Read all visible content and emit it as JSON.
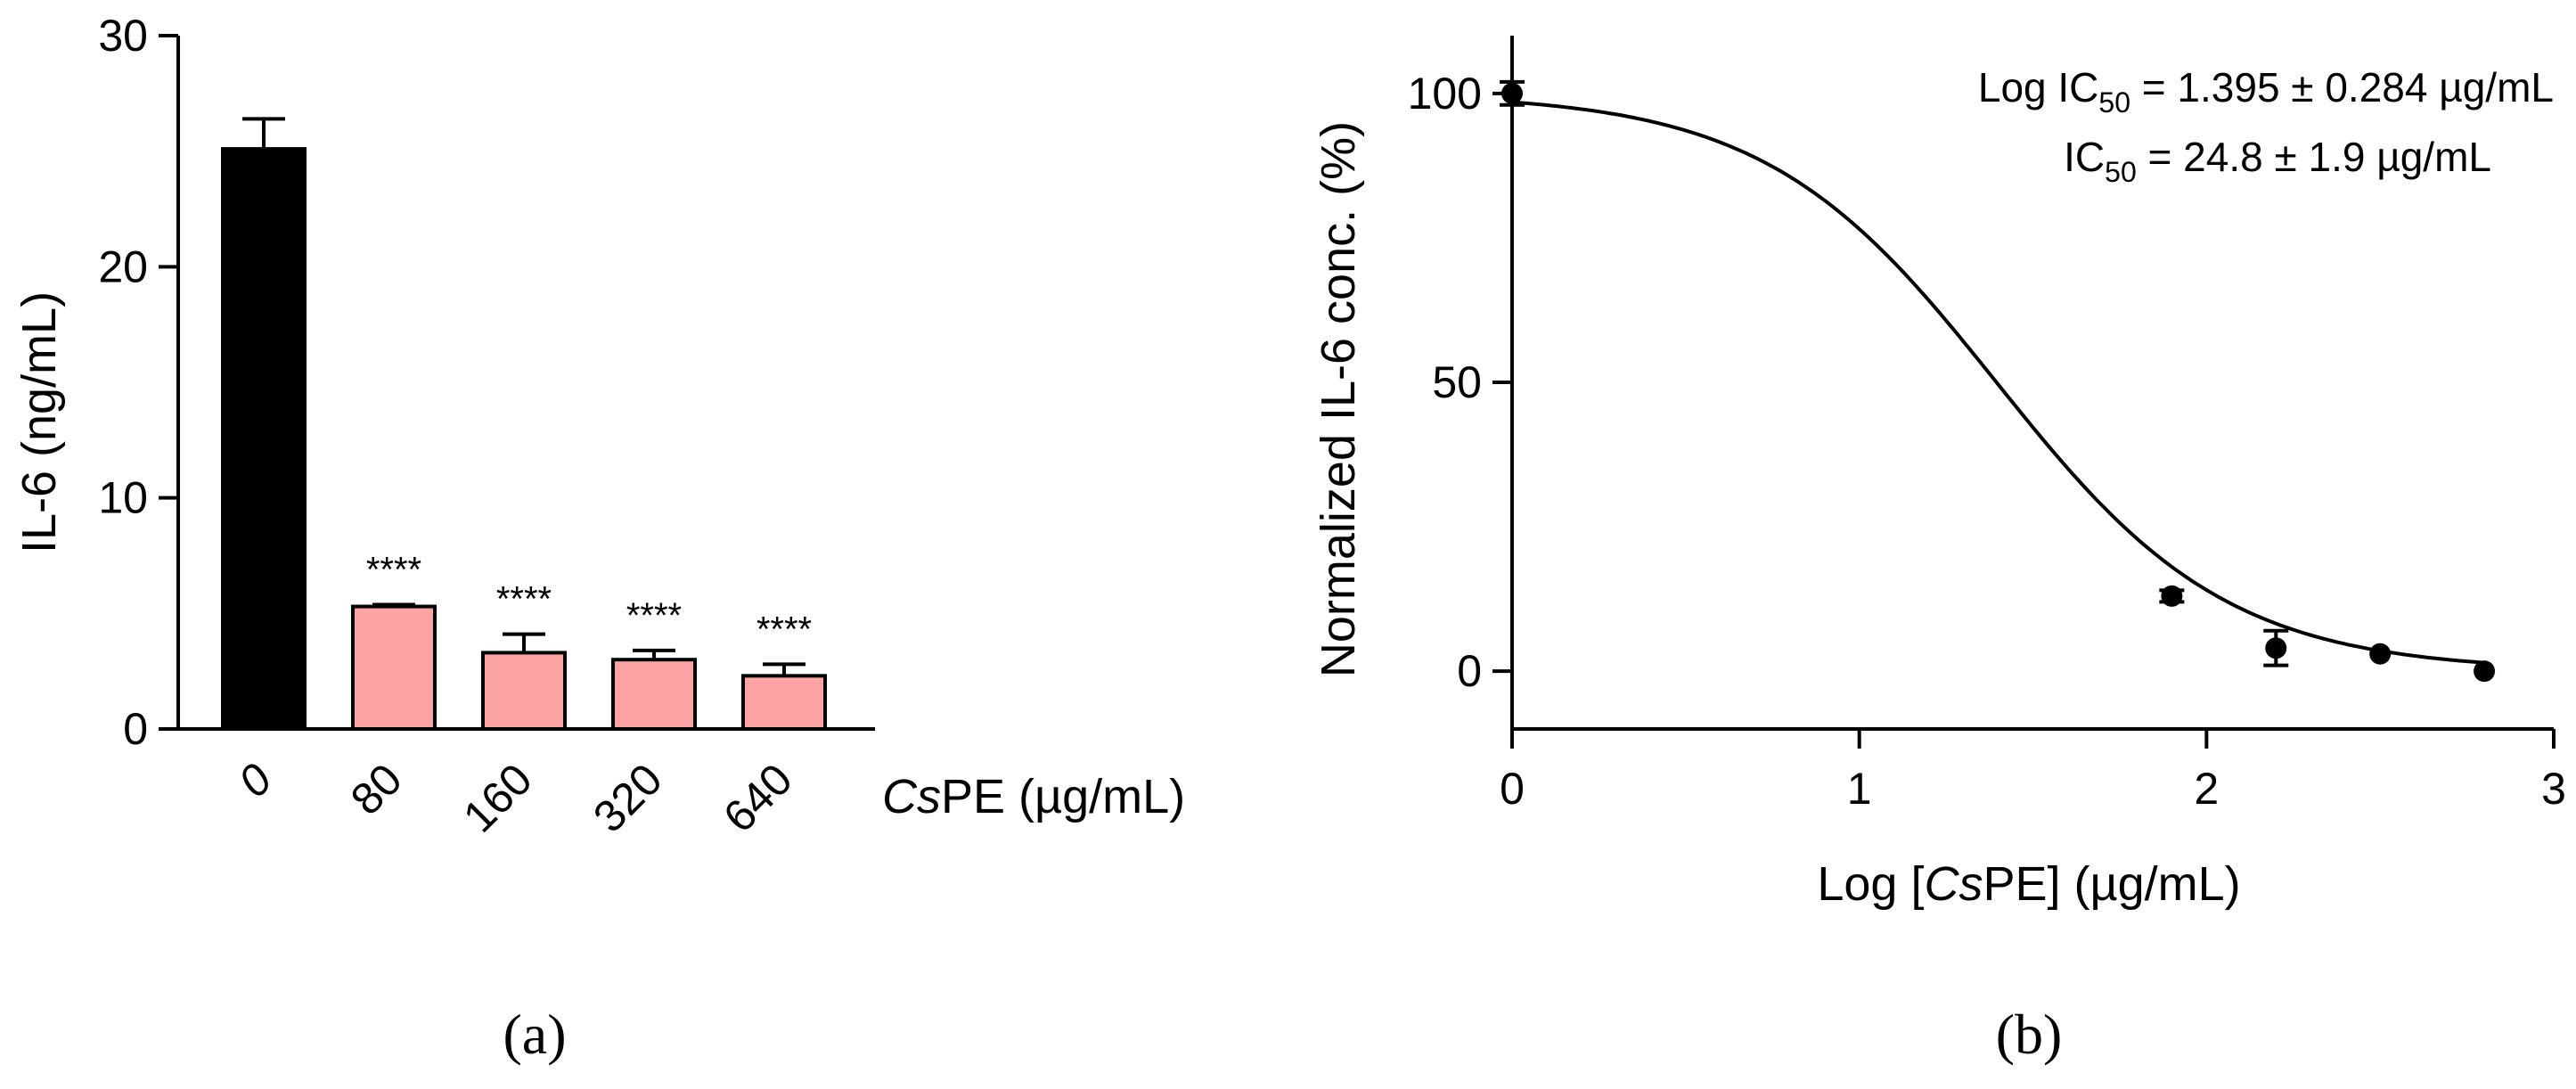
{
  "chart_data": [
    {
      "type": "bar",
      "panel": "(a)",
      "ylabel": "IL-6 (ng/mL)",
      "xlabel_italic": "Cs",
      "xlabel_rest": "PE (µg/mL)",
      "ylim": [
        0,
        30
      ],
      "yticks": [
        0,
        10,
        20,
        30
      ],
      "grid": false,
      "legend": "none",
      "categories": [
        "0",
        "80",
        "160",
        "320",
        "640"
      ],
      "values": [
        25.1,
        5.3,
        3.3,
        3.0,
        2.3
      ],
      "errors": [
        1.3,
        0.08,
        0.8,
        0.4,
        0.5
      ],
      "significance": [
        "",
        "****",
        "****",
        "****",
        "****"
      ],
      "colors": [
        "#000000",
        "#FCA3A3",
        "#FCA3A3",
        "#FCA3A3",
        "#FCA3A3"
      ]
    },
    {
      "type": "scatter",
      "panel": "(b)",
      "xlabel_prefix": "Log [",
      "xlabel_italic": "Cs",
      "xlabel_rest": "PE] (µg/mL)",
      "ylabel": "Normalized IL-6 conc. (%)",
      "xlim": [
        0,
        3
      ],
      "ylim": [
        -10,
        110
      ],
      "xticks": [
        0,
        1,
        2,
        3
      ],
      "yticks": [
        0,
        50,
        100
      ],
      "grid": false,
      "legend": "none",
      "points": {
        "x": [
          0,
          1.9,
          2.2,
          2.5,
          2.8
        ],
        "y": [
          100,
          13,
          4,
          3,
          0
        ],
        "err": [
          2,
          1,
          3,
          0.5,
          0.5
        ]
      },
      "fit": {
        "type": "sigmoid",
        "top": 100,
        "bottom": 0,
        "logIC50": 1.395,
        "hill": 1.3
      },
      "annotation_line1": {
        "prefix": "Log IC",
        "sub": "50",
        "suffix": " = 1.395 ± 0.284 µg/mL"
      },
      "annotation_line2": {
        "prefix": "IC",
        "sub": "50",
        "suffix": " = 24.8 ± 1.9 µg/mL"
      },
      "marker_color": "#000000"
    }
  ]
}
